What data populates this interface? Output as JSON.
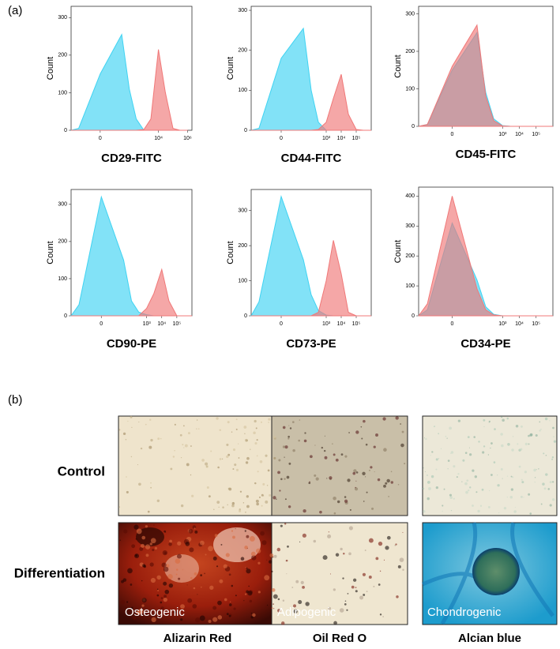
{
  "panel_a_label": "(a)",
  "chart_data": [
    {
      "type": "area",
      "x_label": "CD29-FITC",
      "y_label": "Count",
      "xscale": "symlog",
      "x": [
        -100,
        -30,
        0,
        30,
        100,
        300,
        1000,
        3000,
        10000,
        30000,
        100000,
        300000,
        1000000
      ],
      "xlim": [
        -100,
        2000000
      ],
      "xticks": [
        0,
        {
          "value": 10000,
          "label": "10⁴"
        },
        {
          "value": 1000000,
          "label": "10⁶"
        }
      ],
      "ylim": [
        0,
        330
      ],
      "yticks": [
        0,
        100,
        200,
        300
      ],
      "series": [
        {
          "color": "#3fd3f2",
          "values": [
            0,
            5,
            150,
            255,
            110,
            30,
            0,
            0,
            0,
            0,
            0,
            0,
            0
          ]
        },
        {
          "color": "#f07878",
          "values": [
            0,
            0,
            0,
            0,
            0,
            0,
            2,
            30,
            215,
            100,
            5,
            0,
            0
          ]
        }
      ]
    },
    {
      "type": "area",
      "x_label": "CD44-FITC",
      "y_label": "Count",
      "xscale": "symlog",
      "x": [
        -100,
        -30,
        0,
        30,
        100,
        300,
        1000,
        3000,
        10000,
        30000,
        100000,
        300000,
        1000000
      ],
      "xlim": [
        -100,
        1000000
      ],
      "xticks": [
        0,
        {
          "value": 1000,
          "label": "10³"
        },
        {
          "value": 10000,
          "label": "10⁴"
        },
        {
          "value": 100000,
          "label": "10⁵"
        }
      ],
      "ylim": [
        0,
        310
      ],
      "yticks": [
        0,
        100,
        200,
        300
      ],
      "series": [
        {
          "color": "#3fd3f2",
          "values": [
            0,
            5,
            180,
            255,
            100,
            20,
            0,
            0,
            0,
            0,
            0,
            0,
            0
          ]
        },
        {
          "color": "#f07878",
          "values": [
            0,
            0,
            0,
            0,
            0,
            2,
            20,
            80,
            140,
            40,
            2,
            0,
            0
          ]
        }
      ]
    },
    {
      "type": "area",
      "x_label": "CD45-FITC",
      "y_label": "Count",
      "xscale": "symlog",
      "x": [
        -100,
        -30,
        0,
        30,
        100,
        300,
        1000,
        3000,
        10000,
        30000,
        100000,
        300000,
        1000000
      ],
      "xlim": [
        -100,
        1000000
      ],
      "xticks": [
        0,
        {
          "value": 1000,
          "label": "10³"
        },
        {
          "value": 10000,
          "label": "10⁴"
        },
        {
          "value": 100000,
          "label": "10⁵"
        }
      ],
      "ylim": [
        0,
        320
      ],
      "yticks": [
        0,
        100,
        200,
        300
      ],
      "series": [
        {
          "color": "#3fd3f2",
          "values": [
            0,
            5,
            150,
            250,
            90,
            20,
            2,
            0,
            0,
            0,
            0,
            0,
            0
          ]
        },
        {
          "color": "#f07878",
          "values": [
            0,
            5,
            160,
            270,
            80,
            15,
            1,
            0,
            0,
            0,
            0,
            0,
            0
          ]
        }
      ]
    },
    {
      "type": "area",
      "x_label": "CD90-PE",
      "y_label": "Count",
      "xscale": "symlog",
      "x": [
        -100,
        -30,
        0,
        30,
        100,
        300,
        1000,
        3000,
        10000,
        30000,
        100000,
        300000,
        1000000
      ],
      "xlim": [
        -100,
        1000000
      ],
      "xticks": [
        0,
        {
          "value": 1000,
          "label": "10³"
        },
        {
          "value": 10000,
          "label": "10⁴"
        },
        {
          "value": 100000,
          "label": "10⁵"
        }
      ],
      "ylim": [
        0,
        340
      ],
      "yticks": [
        0,
        100,
        200,
        300
      ],
      "series": [
        {
          "color": "#3fd3f2",
          "values": [
            0,
            30,
            320,
            150,
            40,
            10,
            3,
            0,
            0,
            0,
            0,
            0,
            0
          ]
        },
        {
          "color": "#f07878",
          "values": [
            0,
            0,
            0,
            0,
            0,
            0,
            20,
            60,
            125,
            40,
            0,
            0,
            0
          ]
        }
      ]
    },
    {
      "type": "area",
      "x_label": "CD73-PE",
      "y_label": "Count",
      "xscale": "symlog",
      "x": [
        -100,
        -30,
        0,
        30,
        100,
        300,
        1000,
        3000,
        10000,
        30000,
        100000,
        300000,
        1000000
      ],
      "xlim": [
        -100,
        1000000
      ],
      "xticks": [
        0,
        {
          "value": 1000,
          "label": "10³"
        },
        {
          "value": 10000,
          "label": "10⁴"
        },
        {
          "value": 100000,
          "label": "10⁵"
        }
      ],
      "ylim": [
        0,
        360
      ],
      "yticks": [
        0,
        100,
        200,
        300
      ],
      "series": [
        {
          "color": "#3fd3f2",
          "values": [
            0,
            40,
            340,
            160,
            60,
            15,
            2,
            0,
            0,
            0,
            0,
            0,
            0
          ]
        },
        {
          "color": "#f07878",
          "values": [
            0,
            0,
            0,
            0,
            0,
            10,
            100,
            215,
            120,
            10,
            0,
            0,
            0
          ]
        }
      ]
    },
    {
      "type": "area",
      "x_label": "CD34-PE",
      "y_label": "Count",
      "xscale": "symlog",
      "x": [
        -100,
        -30,
        0,
        30,
        100,
        300,
        1000,
        3000,
        10000,
        30000,
        100000,
        300000,
        1000000
      ],
      "xlim": [
        -100,
        1000000
      ],
      "xticks": [
        0,
        {
          "value": 1000,
          "label": "10³"
        },
        {
          "value": 10000,
          "label": "10⁴"
        },
        {
          "value": 100000,
          "label": "10⁵"
        }
      ],
      "ylim": [
        0,
        430
      ],
      "yticks": [
        0,
        100,
        200,
        300,
        400
      ],
      "series": [
        {
          "color": "#3fd3f2",
          "values": [
            0,
            20,
            310,
            120,
            30,
            5,
            0,
            0,
            0,
            0,
            0,
            0,
            0
          ]
        },
        {
          "color": "#f07878",
          "values": [
            0,
            40,
            400,
            90,
            20,
            3,
            0,
            0,
            0,
            0,
            0,
            0,
            0
          ]
        }
      ]
    }
  ],
  "panel_b": {
    "label": "(b)",
    "row_labels": [
      "Control",
      "Differentiation"
    ],
    "lineages": [
      "Osteogenic",
      "Adipogenic",
      "Chondrogenic"
    ],
    "stains": [
      "Alizarin Red",
      "Oil Red O",
      "Alcian blue"
    ]
  }
}
